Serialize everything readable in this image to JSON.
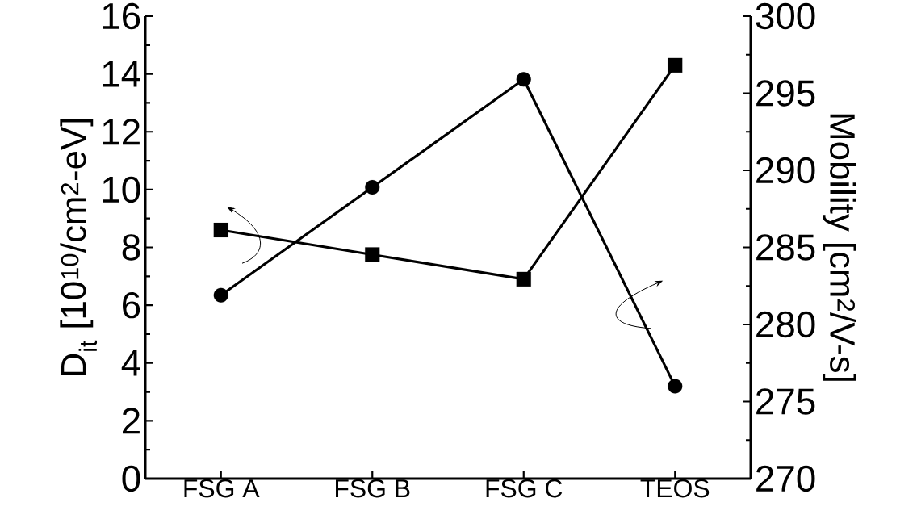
{
  "chart_data": {
    "type": "line",
    "categories": [
      "FSG A",
      "FSG B",
      "FSG C",
      "TEOS"
    ],
    "ylabel": "D$_{it}$ [10$^{10}$/cm$^{2}$-eV]",
    "y2label": "Mobility [cm$^{2}$/V-s]",
    "ylim": [
      0,
      16
    ],
    "yticks": [
      0,
      2,
      4,
      6,
      8,
      10,
      12,
      14,
      16
    ],
    "y2lim": [
      270,
      300
    ],
    "y2ticks": [
      270,
      275,
      280,
      285,
      290,
      295,
      300
    ],
    "series": [
      {
        "color": "#000000",
        "marker": "square",
        "values": [
          8.6,
          7.75,
          6.9,
          14.3
        ]
      },
      {
        "color": "#000000",
        "marker": "circle",
        "axis": "y2",
        "values": [
          281.9,
          288.9,
          295.9,
          276.0
        ]
      }
    ],
    "line_style": "solid"
  }
}
